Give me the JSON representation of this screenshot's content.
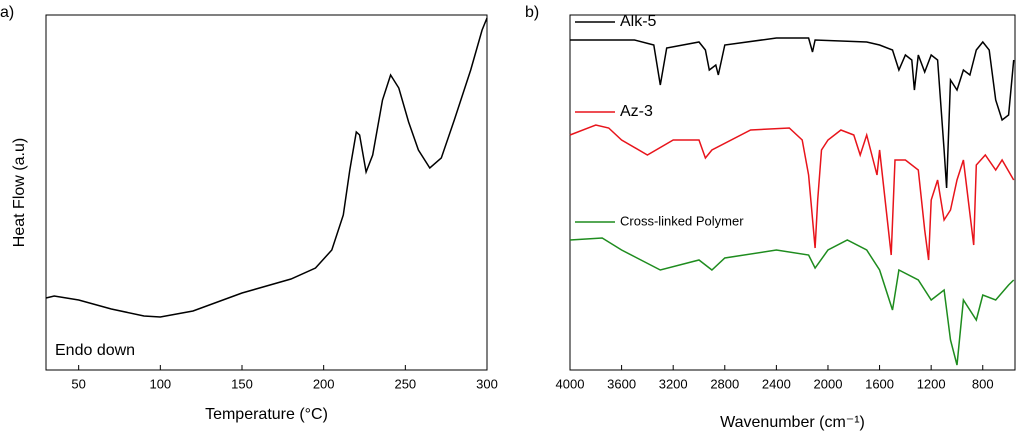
{
  "chart_data": [
    {
      "type": "line",
      "panel": "a)",
      "xlabel": "Temperature (°C)",
      "ylabel": "Heat Flow (a.u)",
      "annotation": "Endo down",
      "xlim": [
        30,
        300
      ],
      "ylim": [
        0,
        355
      ],
      "xticks": [
        50,
        100,
        150,
        200,
        250,
        300
      ],
      "series": [
        {
          "color": "#000000",
          "x": [
            30,
            35,
            50,
            70,
            90,
            100,
            120,
            150,
            180,
            195,
            205,
            212,
            216,
            220,
            222,
            226,
            230,
            236,
            241,
            246,
            252,
            258,
            265,
            272,
            280,
            290,
            297,
            300
          ],
          "values": [
            72,
            74,
            70,
            61,
            54,
            53,
            59,
            77,
            91,
            102,
            120,
            155,
            200,
            238,
            235,
            198,
            215,
            270,
            295,
            282,
            248,
            220,
            202,
            212,
            250,
            300,
            340,
            352
          ]
        }
      ]
    },
    {
      "type": "line",
      "panel": "b)",
      "xlabel": "Wavenumber (cm⁻¹)",
      "xlim": [
        4000,
        550
      ],
      "ylim": [
        0,
        355
      ],
      "xticks": [
        4000,
        3600,
        3200,
        2800,
        2400,
        2000,
        1600,
        1200,
        800
      ],
      "series": [
        {
          "name": "Alk-5",
          "color": "#000000",
          "x": [
            4000,
            3500,
            3350,
            3300,
            3250,
            3000,
            2950,
            2920,
            2870,
            2850,
            2800,
            2400,
            2150,
            2120,
            2100,
            1700,
            1600,
            1500,
            1450,
            1400,
            1350,
            1330,
            1300,
            1250,
            1200,
            1150,
            1100,
            1080,
            1050,
            1000,
            950,
            900,
            850,
            800,
            750,
            700,
            650,
            600,
            560
          ],
          "values": [
            330,
            330,
            325,
            285,
            322,
            328,
            320,
            300,
            305,
            295,
            325,
            332,
            332,
            318,
            330,
            328,
            325,
            320,
            300,
            315,
            310,
            280,
            315,
            298,
            315,
            310,
            220,
            182,
            290,
            280,
            300,
            295,
            320,
            328,
            320,
            270,
            250,
            255,
            310
          ]
        },
        {
          "name": "Az-3",
          "color": "#e8141b",
          "x": [
            4000,
            3800,
            3700,
            3600,
            3400,
            3200,
            3000,
            2950,
            2900,
            2600,
            2300,
            2200,
            2150,
            2100,
            2080,
            2050,
            2000,
            1900,
            1800,
            1750,
            1700,
            1620,
            1600,
            1510,
            1480,
            1400,
            1300,
            1250,
            1220,
            1200,
            1150,
            1100,
            1050,
            1000,
            950,
            870,
            850,
            780,
            700,
            650,
            560
          ],
          "values": [
            235,
            245,
            242,
            230,
            215,
            230,
            230,
            212,
            220,
            240,
            242,
            230,
            195,
            122,
            170,
            220,
            230,
            240,
            235,
            215,
            235,
            195,
            220,
            115,
            210,
            210,
            200,
            140,
            110,
            170,
            190,
            150,
            160,
            190,
            210,
            125,
            205,
            215,
            200,
            210,
            190
          ]
        },
        {
          "name": "Cross-linked Polymer",
          "color": "#1e8c1e",
          "x": [
            4000,
            3750,
            3600,
            3300,
            3000,
            2900,
            2800,
            2400,
            2150,
            2100,
            2000,
            1850,
            1700,
            1600,
            1500,
            1450,
            1300,
            1200,
            1100,
            1050,
            1000,
            950,
            850,
            800,
            700,
            600,
            560
          ],
          "values": [
            130,
            132,
            120,
            100,
            110,
            100,
            112,
            120,
            115,
            102,
            120,
            130,
            120,
            100,
            60,
            100,
            90,
            70,
            80,
            30,
            5,
            70,
            50,
            75,
            70,
            85,
            90
          ]
        }
      ]
    }
  ]
}
